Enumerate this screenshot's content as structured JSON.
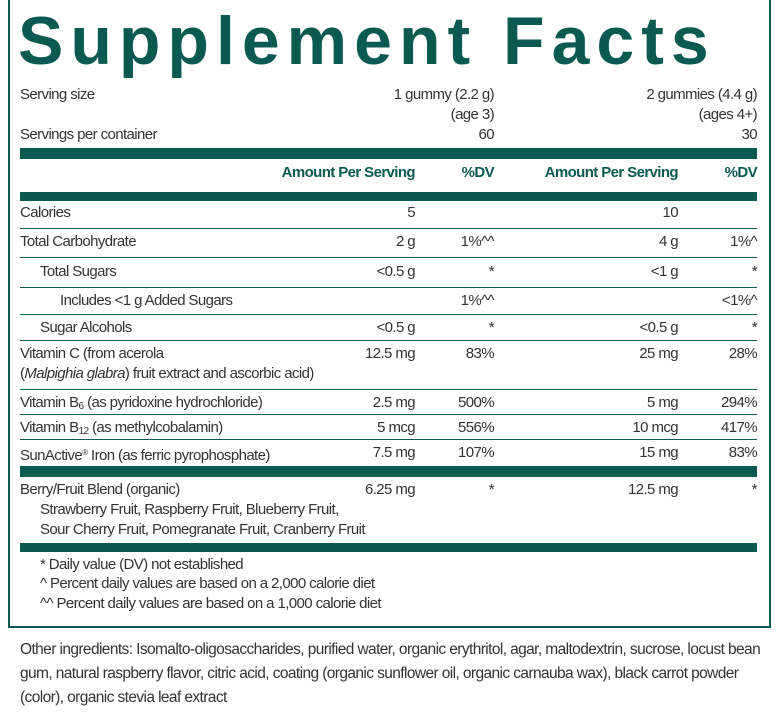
{
  "title": "Supplement Facts",
  "serving": {
    "label": "Serving size",
    "col1": "1 gummy (2.2 g)",
    "col1_age": "(age 3)",
    "col2": "2 gummies (4.4 g)",
    "col2_age": "(ages 4+)",
    "per_container_label": "Servings per container",
    "per_container1": "60",
    "per_container2": "30"
  },
  "header": {
    "amount": "Amount Per Serving",
    "dv": "%DV"
  },
  "rows": [
    {
      "label": "Calories",
      "a1": "5",
      "d1": "",
      "a2": "10",
      "d2": ""
    },
    {
      "label": "Total Carbohydrate",
      "a1": "2 g",
      "d1": "1%^^",
      "a2": "4 g",
      "d2": "1%^"
    },
    {
      "label": "Total Sugars",
      "a1": "<0.5 g",
      "d1": "*",
      "a2": "<1 g",
      "d2": "*"
    },
    {
      "label": "Includes <1 g Added Sugars",
      "a1": "",
      "d1": "1%^^",
      "a2": "",
      "d2": "<1%^"
    },
    {
      "label": "Sugar Alcohols",
      "a1": "<0.5 g",
      "d1": "*",
      "a2": "<0.5 g",
      "d2": "*"
    },
    {
      "label": "Vitamin C (from acerola",
      "label2_italic": "Malpighia glabra",
      "label2_rest": ") fruit extract and ascorbic acid)",
      "a1": "12.5 mg",
      "d1": "83%",
      "a2": "25 mg",
      "d2": "28%"
    },
    {
      "label": "Vitamin B",
      "sub": "6",
      "label_rest": " (as pyridoxine hydrochloride)",
      "a1": "2.5 mg",
      "d1": "500%",
      "a2": "5 mg",
      "d2": "294%"
    },
    {
      "label": "Vitamin B",
      "sub": "12",
      "label_rest": " (as methylcobalamin)",
      "a1": "5 mcg",
      "d1": "556%",
      "a2": "10 mcg",
      "d2": "417%"
    },
    {
      "label": "SunActive",
      "sup": "®",
      "label_rest": " Iron (as ferric pyrophosphate)",
      "a1": "7.5 mg",
      "d1": "107%",
      "a2": "15 mg",
      "d2": "83%"
    },
    {
      "label": "Berry/Fruit Blend (organic)",
      "line2": "Strawberry Fruit, Raspberry Fruit, Blueberry Fruit,",
      "line3": "Sour Cherry Fruit, Pomegranate Fruit, Cranberry Fruit",
      "a1": "6.25 mg",
      "d1": "*",
      "a2": "12.5 mg",
      "d2": "*"
    }
  ],
  "footnotes": [
    "* Daily value (DV) not established",
    "^ Percent daily values are based on a 2,000 calorie diet",
    "^^ Percent daily values are based on a 1,000 calorie diet"
  ],
  "other_ingredients": "Other ingredients: Isomalto-oligosaccharides, purified water, organic erythritol, agar, maltodextrin, sucrose, locust bean gum, natural raspberry flavor, citric acid, coating (organic sunflower oil, organic carnauba wax), black carrot powder (color), organic stevia leaf extract"
}
